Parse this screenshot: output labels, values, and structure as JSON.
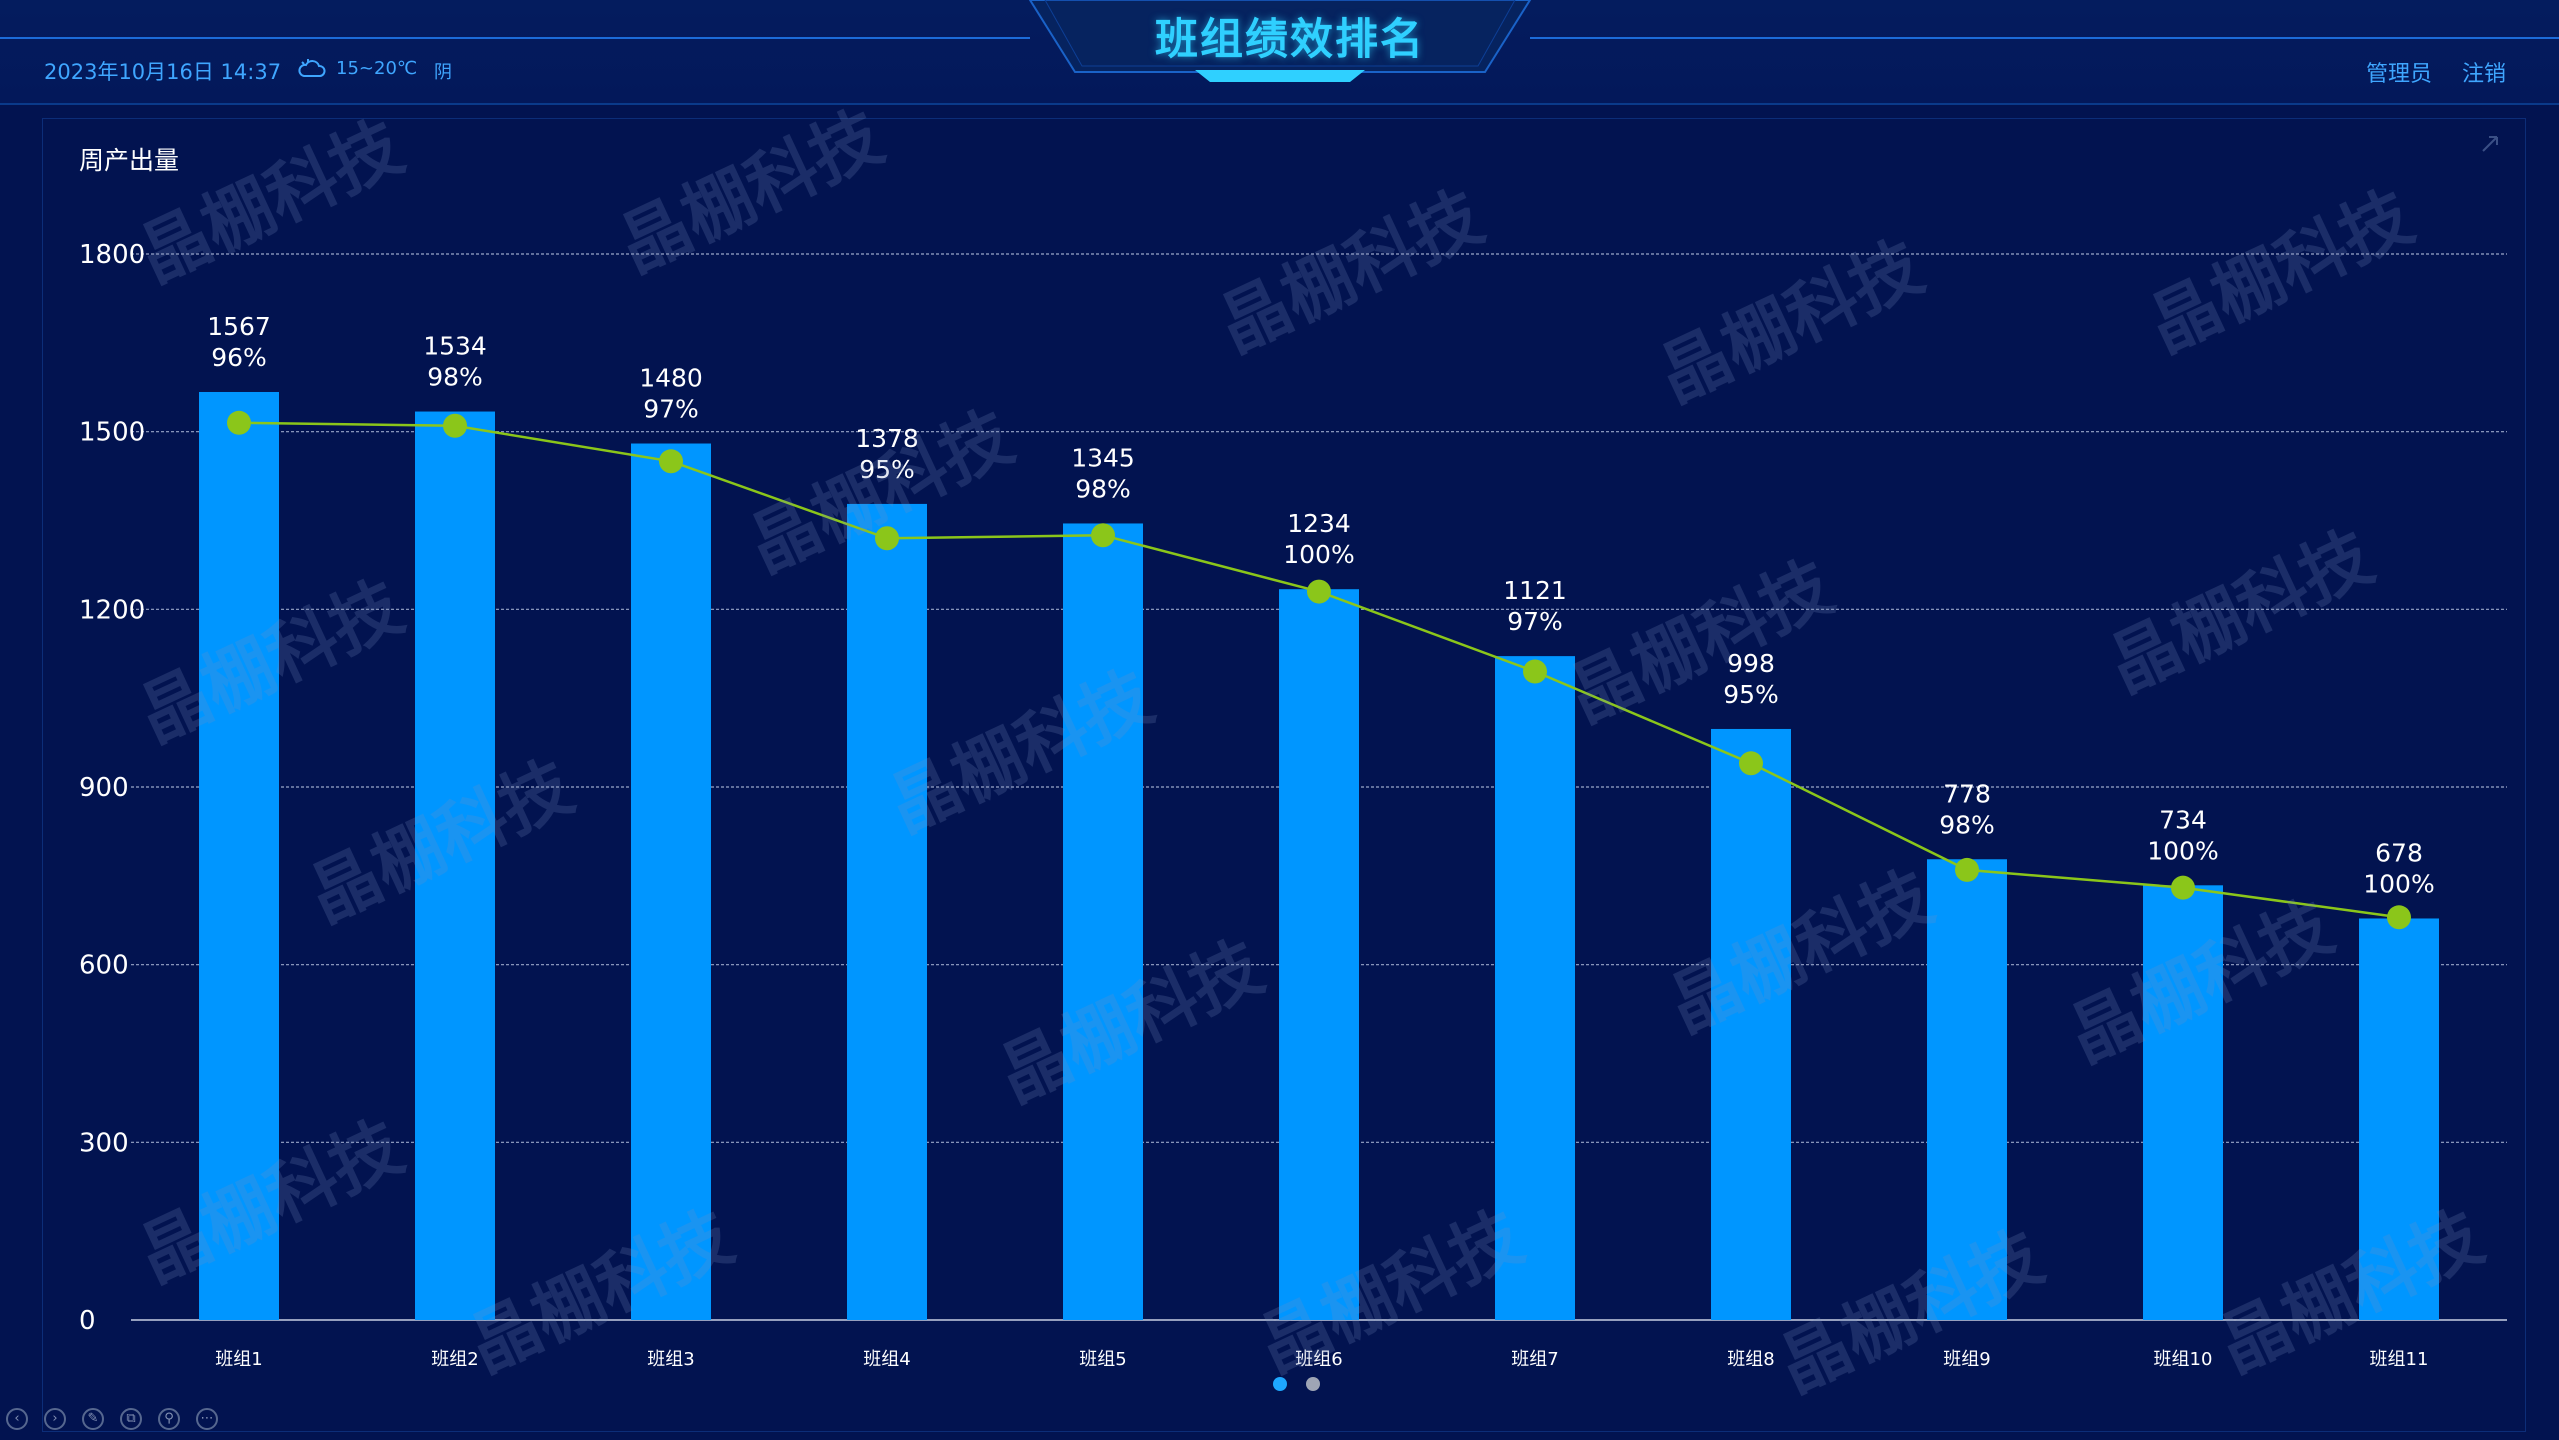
{
  "header": {
    "datetime": "2023年10月16日 14:37",
    "temperature": "15~20℃",
    "condition": "阴",
    "title": "班组绩效排名",
    "admin_label": "管理员",
    "logout_label": "注销"
  },
  "watermark_text": "晶棚科技",
  "chart_data": {
    "type": "bar",
    "ylabel": "周产出量",
    "ylim": [
      0,
      1800
    ],
    "yticks": [
      0,
      300,
      600,
      900,
      1200,
      1500,
      1800
    ],
    "grid": true,
    "categories": [
      "班组1",
      "班组2",
      "班组3",
      "班组4",
      "班组5",
      "班组6",
      "班组7",
      "班组8",
      "班组9",
      "班组10",
      "班组11"
    ],
    "series": [
      {
        "type": "bar",
        "values": [
          1567,
          1534,
          1480,
          1378,
          1345,
          1234,
          1121,
          998,
          778,
          734,
          678
        ],
        "color": "#0096ff"
      },
      {
        "type": "line",
        "values": [
          1515,
          1510,
          1450,
          1320,
          1325,
          1230,
          1095,
          940,
          760,
          730,
          680
        ],
        "color": "#8bc61a"
      }
    ],
    "percent_labels": [
      "96%",
      "98%",
      "97%",
      "95%",
      "98%",
      "100%",
      "97%",
      "95%",
      "98%",
      "100%",
      "100%"
    ],
    "pagination": {
      "pages": 2,
      "active": 0
    }
  },
  "colors": {
    "background": "#021350",
    "bar": "#0096ff",
    "line": "#8bc61a",
    "title": "#2fd0ff",
    "header_text": "#3fa6ff"
  }
}
